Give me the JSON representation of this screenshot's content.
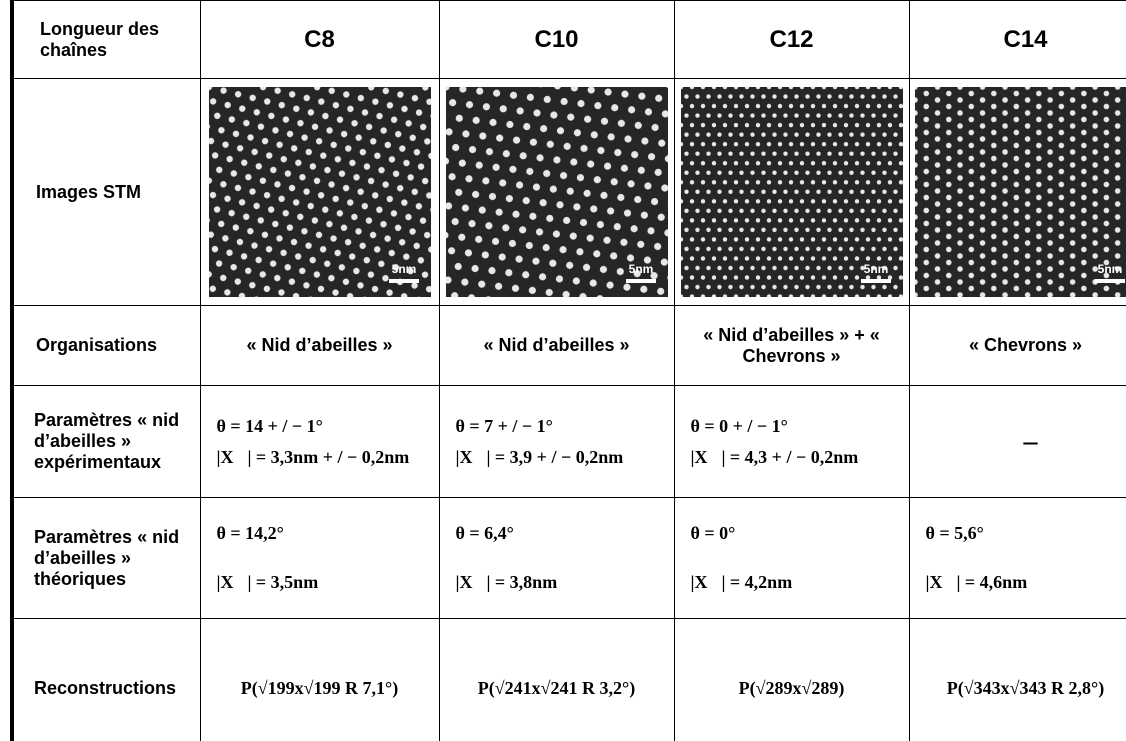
{
  "table": {
    "header": [
      "Longueur des chaînes",
      "C8",
      "C10",
      "C12",
      "C14"
    ],
    "rows": [
      {
        "label": "Images STM",
        "cells": [
          "5nm",
          "5nm",
          "5nm",
          "5nm"
        ]
      },
      {
        "label": "Organisations",
        "cells": [
          "« Nid d’abeilles »",
          "« Nid d’abeilles »",
          "« Nid d’abeilles » + « Chevrons »",
          "« Chevrons »"
        ]
      },
      {
        "label": "Paramètres « nid d’abeilles » expérimentaux",
        "cells": [
          [
            "θ = 14 + / − 1°",
            "|X⃗| = 3,3nm + / − 0,2nm"
          ],
          [
            "θ = 7 + / − 1°",
            "|X⃗| = 3,9 + / − 0,2nm"
          ],
          [
            "θ = 0 + / − 1°",
            "|X⃗| = 4,3 + / − 0,2nm"
          ],
          [
            "–"
          ]
        ]
      },
      {
        "label": "Paramètres « nid d’abeilles » théoriques",
        "cells": [
          [
            "θ = 14,2°",
            "|X⃗| = 3,5nm"
          ],
          [
            "θ = 6,4°",
            "|X⃗| = 3,8nm"
          ],
          [
            "θ = 0°",
            "|X⃗| = 4,2nm"
          ],
          [
            "θ = 5,6°",
            "|X⃗| = 4,6nm"
          ]
        ]
      },
      {
        "label": "Reconstructions",
        "cells": [
          "P(√199x√199 R 7,1°)",
          "P(√241x√241 R 3,2°)",
          "P(√289x√289)",
          "P(√343x√343 R 2,8°)"
        ]
      }
    ]
  }
}
